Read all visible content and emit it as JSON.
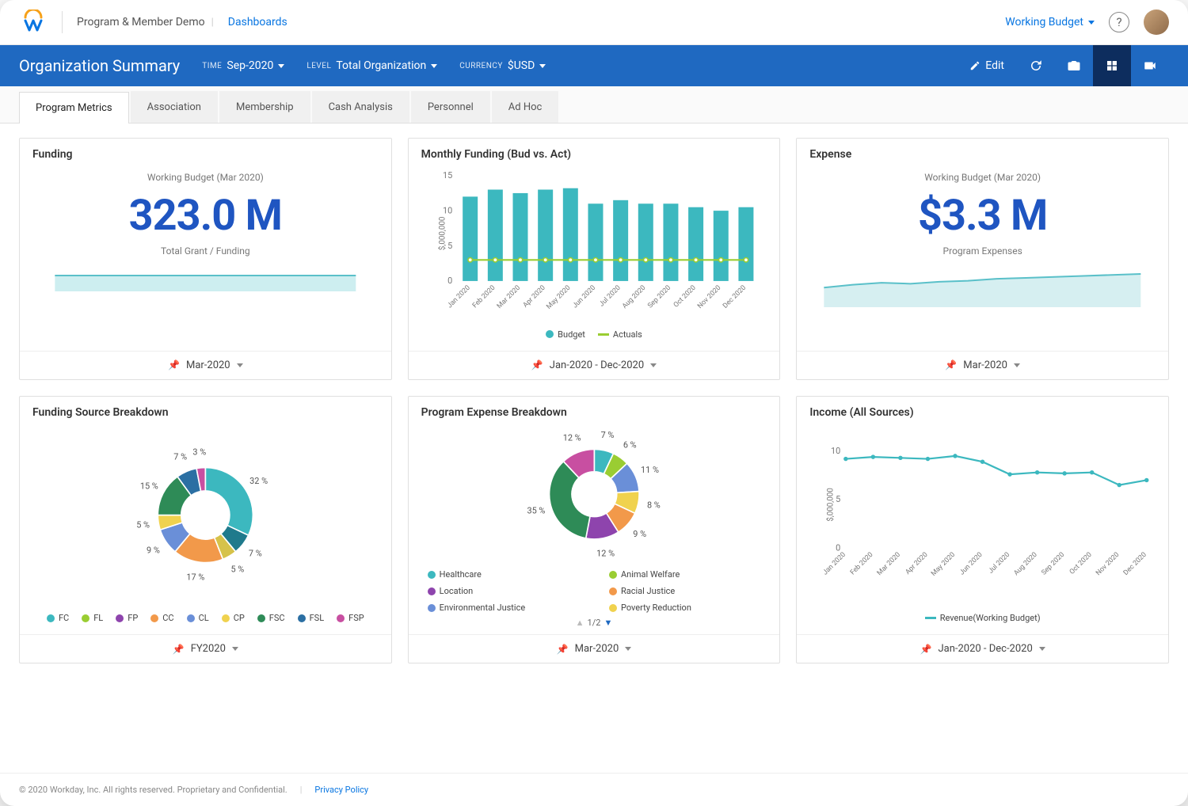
{
  "header": {
    "breadcrumb": "Program & Member Demo",
    "breadcrumb_link": "Dashboards",
    "working_budget_label": "Working Budget"
  },
  "banner": {
    "title": "Organization Summary",
    "filters": {
      "time": {
        "label": "TIME",
        "value": "Sep-2020"
      },
      "level": {
        "label": "LEVEL",
        "value": "Total Organization"
      },
      "currency": {
        "label": "CURRENCY",
        "value": "$USD"
      }
    },
    "edit_label": "Edit"
  },
  "tabs": [
    "Program Metrics",
    "Association",
    "Membership",
    "Cash Analysis",
    "Personnel",
    "Ad Hoc"
  ],
  "active_tab": 0,
  "cards": {
    "funding": {
      "title": "Funding",
      "subtitle": "Working Budget (Mar 2020)",
      "value": "323.0 M",
      "caption": "Total Grant / Funding",
      "footer": "Mar-2020",
      "spark_color": "#5ac0c9",
      "spark_fill": "#cdeef0"
    },
    "monthly_funding": {
      "title": "Monthly Funding (Bud vs. Act)",
      "footer": "Jan-2020 - Dec-2020",
      "type": "bar-line",
      "ylabel": "$,000,000",
      "ylim": [
        0,
        15
      ],
      "ytick_step": 5,
      "categories": [
        "Jan 2020",
        "Feb 2020",
        "Mar 2020",
        "Apr 2020",
        "May 2020",
        "Jun 2020",
        "Jul 2020",
        "Aug 2020",
        "Sep 2020",
        "Oct 2020",
        "Nov 2020",
        "Dec 2020"
      ],
      "bar_values": [
        12,
        13,
        12.5,
        13,
        13.2,
        11,
        11.5,
        11,
        11,
        10.5,
        10,
        10.5
      ],
      "bar_color": "#3cb8bf",
      "line_values": [
        3,
        3,
        3,
        3,
        3,
        3,
        3,
        3,
        3,
        3,
        3,
        3
      ],
      "line_color": "#9acd32",
      "legend": [
        {
          "label": "Budget",
          "color": "#3cb8bf",
          "shape": "circle"
        },
        {
          "label": "Actuals",
          "color": "#9acd32",
          "shape": "line"
        }
      ]
    },
    "expense": {
      "title": "Expense",
      "subtitle": "Working Budget (Mar 2020)",
      "value": "$3.3 M",
      "caption": "Program Expenses",
      "footer": "Mar-2020",
      "area_color": "#5ac0c9",
      "area_fill": "#d6eff1",
      "area_values": [
        2,
        2.3,
        2.5,
        2.4,
        2.6,
        2.7,
        2.9,
        3.0,
        3.1,
        3.2,
        3.3,
        3.4
      ]
    },
    "funding_source": {
      "title": "Funding Source Breakdown",
      "footer": "FY2020",
      "type": "donut",
      "slices": [
        {
          "label": "32 %",
          "value": 32,
          "color": "#3cb8bf"
        },
        {
          "label": "7 %",
          "value": 7,
          "color": "#1f7a8c"
        },
        {
          "label": "5 %",
          "value": 5,
          "color": "#d6c24a"
        },
        {
          "label": "17 %",
          "value": 17,
          "color": "#f2994a"
        },
        {
          "label": "9 %",
          "value": 9,
          "color": "#6a8fd8"
        },
        {
          "label": "5 %",
          "value": 5,
          "color": "#f0d24e"
        },
        {
          "label": "15 %",
          "value": 15,
          "color": "#2e8b57"
        },
        {
          "label": "7 %",
          "value": 7,
          "color": "#2b6fa3"
        },
        {
          "label": "3 %",
          "value": 3,
          "color": "#c84fa1"
        }
      ],
      "legend": [
        {
          "label": "FC",
          "color": "#3cb8bf"
        },
        {
          "label": "FL",
          "color": "#9acd32"
        },
        {
          "label": "FP",
          "color": "#8e44ad"
        },
        {
          "label": "CC",
          "color": "#f2994a"
        },
        {
          "label": "CL",
          "color": "#6a8fd8"
        },
        {
          "label": "CP",
          "color": "#f0d24e"
        },
        {
          "label": "FSC",
          "color": "#2e8b57"
        },
        {
          "label": "FSL",
          "color": "#2b6fa3"
        },
        {
          "label": "FSP",
          "color": "#c84fa1"
        }
      ]
    },
    "program_expense": {
      "title": "Program Expense Breakdown",
      "footer": "Mar-2020",
      "type": "donut",
      "pager": "1/2",
      "slices": [
        {
          "label": "7 %",
          "value": 7,
          "color": "#3cb8bf"
        },
        {
          "label": "6 %",
          "value": 6,
          "color": "#9acd32"
        },
        {
          "label": "11 %",
          "value": 11,
          "color": "#6a8fd8"
        },
        {
          "label": "8 %",
          "value": 8,
          "color": "#f0d24e"
        },
        {
          "label": "9 %",
          "value": 9,
          "color": "#f2994a"
        },
        {
          "label": "12 %",
          "value": 12,
          "color": "#8e44ad"
        },
        {
          "label": "35 %",
          "value": 35,
          "color": "#2e8b57"
        },
        {
          "label": "12 %",
          "value": 12,
          "color": "#c84fa1"
        }
      ],
      "legend": [
        {
          "label": "Healthcare",
          "color": "#3cb8bf"
        },
        {
          "label": "Animal Welfare",
          "color": "#9acd32"
        },
        {
          "label": "Location",
          "color": "#8e44ad"
        },
        {
          "label": "Racial Justice",
          "color": "#f2994a"
        },
        {
          "label": "Environmental Justice",
          "color": "#6a8fd8"
        },
        {
          "label": "Poverty Reduction",
          "color": "#f0d24e"
        }
      ]
    },
    "income": {
      "title": "Income (All Sources)",
      "footer": "Jan-2020 - Dec-2020",
      "type": "line",
      "ylabel": "$,000,000",
      "ylim": [
        0,
        10
      ],
      "ytick_step": 5,
      "categories": [
        "Jan 2020",
        "Feb 2020",
        "Mar 2020",
        "Apr 2020",
        "May 2020",
        "Jun 2020",
        "Jul 2020",
        "Aug 2020",
        "Sep 2020",
        "Oct 2020",
        "Nov 2020",
        "Dec 2020"
      ],
      "values": [
        9.2,
        9.4,
        9.3,
        9.2,
        9.5,
        8.9,
        7.6,
        7.8,
        7.7,
        7.8,
        6.5,
        7.0
      ],
      "line_color": "#3cb8bf",
      "legend": [
        {
          "label": "Revenue(Working Budget)",
          "color": "#3cb8bf",
          "shape": "line"
        }
      ]
    }
  },
  "footer": {
    "copyright": "© 2020 Workday, Inc. All rights reserved. Proprietary and Confidential.",
    "privacy": "Privacy Policy"
  },
  "colors": {
    "brand_blue": "#1f69c1",
    "link_blue": "#0875e1",
    "kpi_blue": "#1f55c1"
  }
}
